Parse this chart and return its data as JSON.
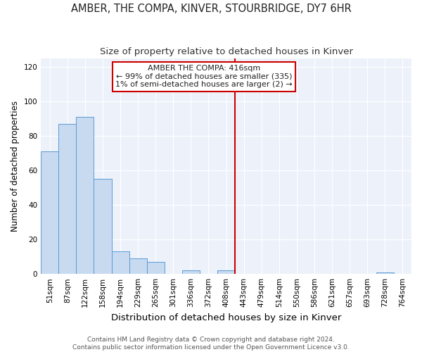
{
  "title": "AMBER, THE COMPA, KINVER, STOURBRIDGE, DY7 6HR",
  "subtitle": "Size of property relative to detached houses in Kinver",
  "xlabel": "Distribution of detached houses by size in Kinver",
  "ylabel": "Number of detached properties",
  "bar_color": "#c8daf0",
  "bar_edge_color": "#5b9bd5",
  "background_color": "#ffffff",
  "plot_bg_color": "#edf2fa",
  "grid_color": "#ffffff",
  "bin_labels": [
    "51sqm",
    "87sqm",
    "122sqm",
    "158sqm",
    "194sqm",
    "229sqm",
    "265sqm",
    "301sqm",
    "336sqm",
    "372sqm",
    "408sqm",
    "443sqm",
    "479sqm",
    "514sqm",
    "550sqm",
    "586sqm",
    "621sqm",
    "657sqm",
    "693sqm",
    "728sqm",
    "764sqm"
  ],
  "bar_heights": [
    71,
    87,
    91,
    55,
    13,
    9,
    7,
    0,
    2,
    0,
    2,
    0,
    0,
    0,
    0,
    0,
    0,
    0,
    0,
    1,
    0
  ],
  "ylim": [
    0,
    125
  ],
  "yticks": [
    0,
    20,
    40,
    60,
    80,
    100,
    120
  ],
  "vline_x_index": 10.5,
  "vline_color": "#cc0000",
  "annotation_line1": "AMBER THE COMPA: 416sqm",
  "annotation_line2": "← 99% of detached houses are smaller (335)",
  "annotation_line3": "1% of semi-detached houses are larger (2) →",
  "footer_text": "Contains HM Land Registry data © Crown copyright and database right 2024.\nContains public sector information licensed under the Open Government Licence v3.0.",
  "title_fontsize": 10.5,
  "subtitle_fontsize": 9.5,
  "xlabel_fontsize": 9.5,
  "ylabel_fontsize": 8.5,
  "tick_fontsize": 7.5,
  "annotation_fontsize": 8,
  "footer_fontsize": 6.5
}
